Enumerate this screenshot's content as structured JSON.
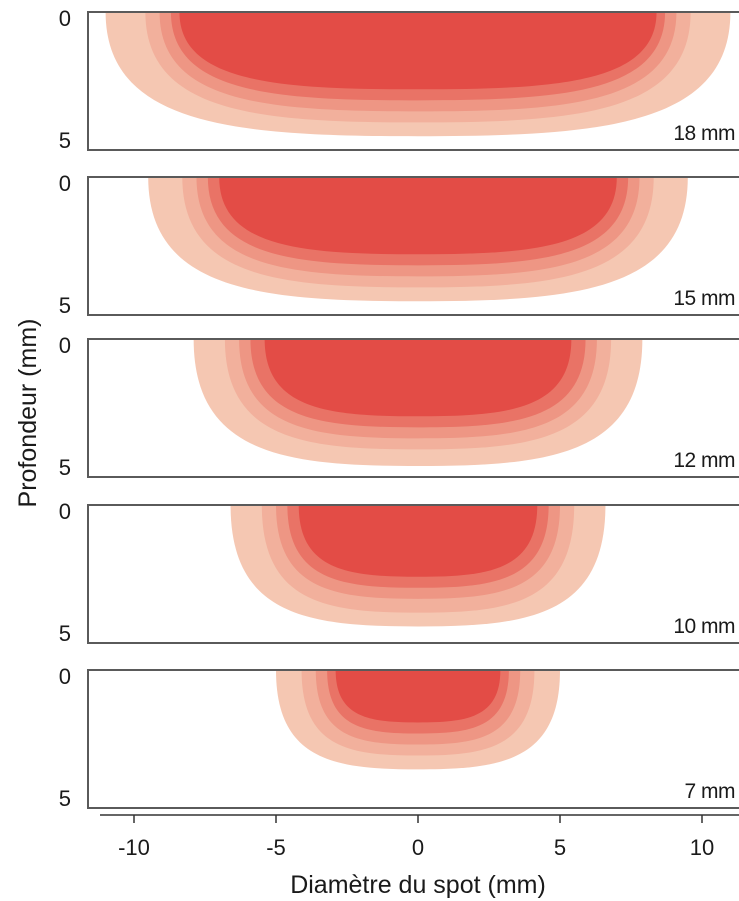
{
  "chart_data": {
    "type": "heatmap",
    "xlabel": "Diamètre du spot (mm)",
    "ylabel": "Profondeur (mm)",
    "xlim": [
      -12,
      11
    ],
    "x_ticks": [
      -10,
      -5,
      0,
      5,
      10
    ],
    "x_tick_labels": [
      "-10",
      "-5",
      "0",
      "5",
      "10"
    ],
    "ylim": [
      0,
      5
    ],
    "y_ticks": [
      0,
      5
    ],
    "y_tick_labels": [
      "0",
      "5"
    ],
    "y_inverted": true,
    "level_colors": [
      "#f5c7b2",
      "#f2b09c",
      "#ee9684",
      "#e97366",
      "#e34c46"
    ],
    "panels": [
      {
        "spot_label": "18 mm",
        "spot_diameter_mm": 18,
        "contours": [
          {
            "half_width_mm": 11.0,
            "max_depth_mm": 4.5
          },
          {
            "half_width_mm": 9.6,
            "max_depth_mm": 4.0
          },
          {
            "half_width_mm": 9.1,
            "max_depth_mm": 3.6
          },
          {
            "half_width_mm": 8.7,
            "max_depth_mm": 3.2
          },
          {
            "half_width_mm": 8.4,
            "max_depth_mm": 2.8
          }
        ]
      },
      {
        "spot_label": "15 mm",
        "spot_diameter_mm": 15,
        "contours": [
          {
            "half_width_mm": 9.5,
            "max_depth_mm": 4.5
          },
          {
            "half_width_mm": 8.3,
            "max_depth_mm": 4.0
          },
          {
            "half_width_mm": 7.8,
            "max_depth_mm": 3.6
          },
          {
            "half_width_mm": 7.4,
            "max_depth_mm": 3.2
          },
          {
            "half_width_mm": 7.0,
            "max_depth_mm": 2.8
          }
        ]
      },
      {
        "spot_label": "12 mm",
        "spot_diameter_mm": 12,
        "contours": [
          {
            "half_width_mm": 7.9,
            "max_depth_mm": 4.6
          },
          {
            "half_width_mm": 6.8,
            "max_depth_mm": 4.0
          },
          {
            "half_width_mm": 6.3,
            "max_depth_mm": 3.6
          },
          {
            "half_width_mm": 5.9,
            "max_depth_mm": 3.2
          },
          {
            "half_width_mm": 5.4,
            "max_depth_mm": 2.8
          }
        ]
      },
      {
        "spot_label": "10 mm",
        "spot_diameter_mm": 10,
        "contours": [
          {
            "half_width_mm": 6.6,
            "max_depth_mm": 4.4
          },
          {
            "half_width_mm": 5.5,
            "max_depth_mm": 3.9
          },
          {
            "half_width_mm": 5.0,
            "max_depth_mm": 3.4
          },
          {
            "half_width_mm": 4.6,
            "max_depth_mm": 3.0
          },
          {
            "half_width_mm": 4.2,
            "max_depth_mm": 2.6
          }
        ]
      },
      {
        "spot_label": "7 mm",
        "spot_diameter_mm": 7,
        "contours": [
          {
            "half_width_mm": 5.0,
            "max_depth_mm": 3.6
          },
          {
            "half_width_mm": 4.1,
            "max_depth_mm": 3.1
          },
          {
            "half_width_mm": 3.6,
            "max_depth_mm": 2.7
          },
          {
            "half_width_mm": 3.2,
            "max_depth_mm": 2.3
          },
          {
            "half_width_mm": 2.9,
            "max_depth_mm": 1.9
          }
        ]
      }
    ]
  }
}
